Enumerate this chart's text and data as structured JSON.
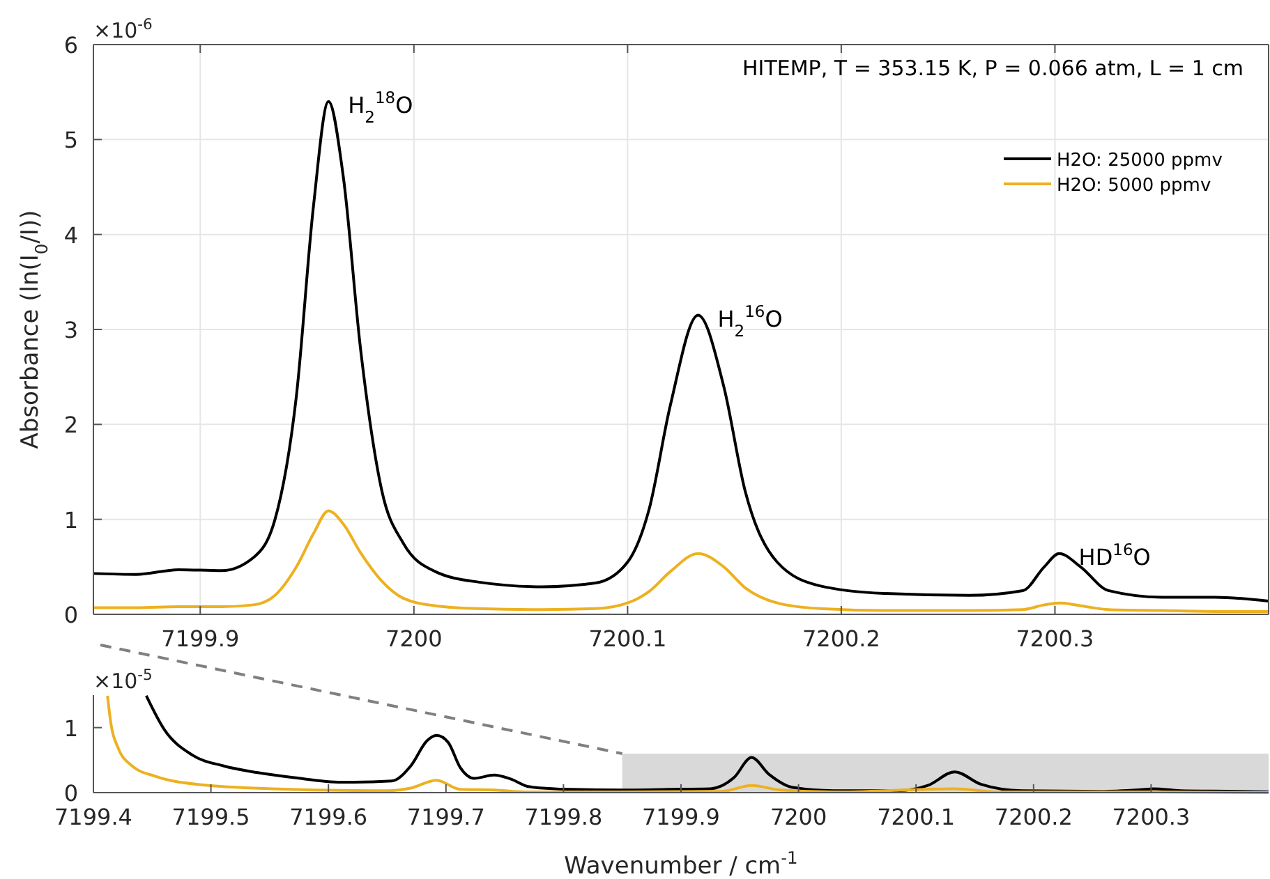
{
  "chart_data": [
    {
      "type": "line",
      "ylabel": "Absorbance (ln(I$_{0}$/I))",
      "annotations": [
        "×10$^{-6}$",
        "HITEMP, T = 353.15 K, P = 0.066 atm, L = 1 cm",
        {
          "text": "H$_{2}$$^{18}$O",
          "x": 7199.96,
          "y": 5.4
        },
        {
          "text": "H$_{2}$$^{16}$O",
          "x": 7200.133,
          "y": 3.15
        },
        {
          "text": "HD$^{16}$O",
          "x": 7200.302,
          "y": 0.64
        }
      ],
      "x": [
        7199.85,
        7199.87,
        7199.89,
        7199.91,
        7199.925,
        7199.935,
        7199.945,
        7199.953,
        7199.96,
        7199.967,
        7199.975,
        7199.985,
        7199.995,
        7200.01,
        7200.03,
        7200.06,
        7200.085,
        7200.1,
        7200.11,
        7200.12,
        7200.133,
        7200.145,
        7200.155,
        7200.17,
        7200.19,
        7200.22,
        7200.26,
        7200.285,
        7200.295,
        7200.302,
        7200.312,
        7200.325,
        7200.35,
        7200.375,
        7200.4
      ],
      "series": [
        {
          "name": "H2O: 25000 ppmv",
          "color": "#000000",
          "values": [
            0.43,
            0.42,
            0.47,
            0.46,
            0.6,
            1.0,
            2.3,
            4.3,
            5.4,
            4.6,
            2.8,
            1.3,
            0.75,
            0.45,
            0.34,
            0.29,
            0.33,
            0.55,
            1.1,
            2.2,
            3.15,
            2.4,
            1.3,
            0.55,
            0.3,
            0.22,
            0.2,
            0.25,
            0.5,
            0.64,
            0.5,
            0.25,
            0.18,
            0.18,
            0.14
          ]
        },
        {
          "name": "H2O: 5000 ppmv",
          "color": "#edb120",
          "values": [
            0.07,
            0.07,
            0.08,
            0.08,
            0.1,
            0.2,
            0.5,
            0.85,
            1.09,
            0.95,
            0.65,
            0.35,
            0.17,
            0.09,
            0.06,
            0.05,
            0.06,
            0.12,
            0.24,
            0.45,
            0.64,
            0.5,
            0.28,
            0.12,
            0.06,
            0.04,
            0.04,
            0.05,
            0.1,
            0.12,
            0.09,
            0.05,
            0.04,
            0.03,
            0.03
          ]
        }
      ],
      "xlim": [
        7199.85,
        7200.4
      ],
      "xticks": [
        7199.9,
        7200,
        7200.1,
        7200.2,
        7200.3
      ],
      "ylim": [
        0,
        6
      ],
      "yticks": [
        0,
        1,
        2,
        3,
        4,
        5,
        6
      ],
      "grid": true,
      "legend": "top right"
    },
    {
      "type": "line",
      "xlabel": "Wavenumber / cm$^{-1}$",
      "annotations": [
        "×10$^{-5}$"
      ],
      "series": [
        {
          "color": "#000000",
          "x": [
            7199.445,
            7199.46,
            7199.484,
            7199.511,
            7199.539,
            7199.571,
            7199.611,
            7199.654,
            7199.67,
            7199.684,
            7199.692,
            7199.702,
            7199.712,
            7199.724,
            7199.741,
            7199.755,
            7199.771,
            7199.807,
            7199.85,
            7199.89,
            7199.925,
            7199.945,
            7199.96,
            7199.975,
            7199.995,
            7200.03,
            7200.085,
            7200.11,
            7200.133,
            7200.155,
            7200.19,
            7200.26,
            7200.295,
            7200.302,
            7200.325,
            7200.375,
            7200.4
          ],
          "values": [
            1.49,
            0.98,
            0.58,
            0.41,
            0.31,
            0.23,
            0.16,
            0.18,
            0.41,
            0.8,
            0.88,
            0.77,
            0.39,
            0.22,
            0.27,
            0.21,
            0.09,
            0.05,
            0.04,
            0.05,
            0.06,
            0.23,
            0.54,
            0.28,
            0.08,
            0.03,
            0.03,
            0.11,
            0.32,
            0.13,
            0.03,
            0.02,
            0.05,
            0.06,
            0.03,
            0.02,
            0.01
          ]
        },
        {
          "color": "#edb120",
          "x": [
            7199.412,
            7199.415,
            7199.421,
            7199.433,
            7199.453,
            7199.492,
            7199.552,
            7199.651,
            7199.67,
            7199.692,
            7199.712,
            7199.741,
            7199.767,
            7199.85,
            7199.935,
            7199.96,
            7199.985,
            7200.03,
            7200.133,
            7200.17,
            7200.302,
            7200.4
          ],
          "values": [
            1.49,
            1.05,
            0.69,
            0.41,
            0.25,
            0.12,
            0.06,
            0.03,
            0.07,
            0.19,
            0.05,
            0.04,
            0.01,
            0.01,
            0.02,
            0.11,
            0.04,
            0.01,
            0.06,
            0.01,
            0.01,
            0.0
          ]
        }
      ],
      "xlim": [
        7199.4,
        7200.4
      ],
      "xticks": [
        7199.4,
        7199.5,
        7199.6,
        7199.7,
        7199.8,
        7199.9,
        7200,
        7200.1,
        7200.2,
        7200.3
      ],
      "ylim": [
        0,
        1.5
      ],
      "yticks": [
        0,
        1
      ],
      "grid": false,
      "legend": false
    }
  ]
}
